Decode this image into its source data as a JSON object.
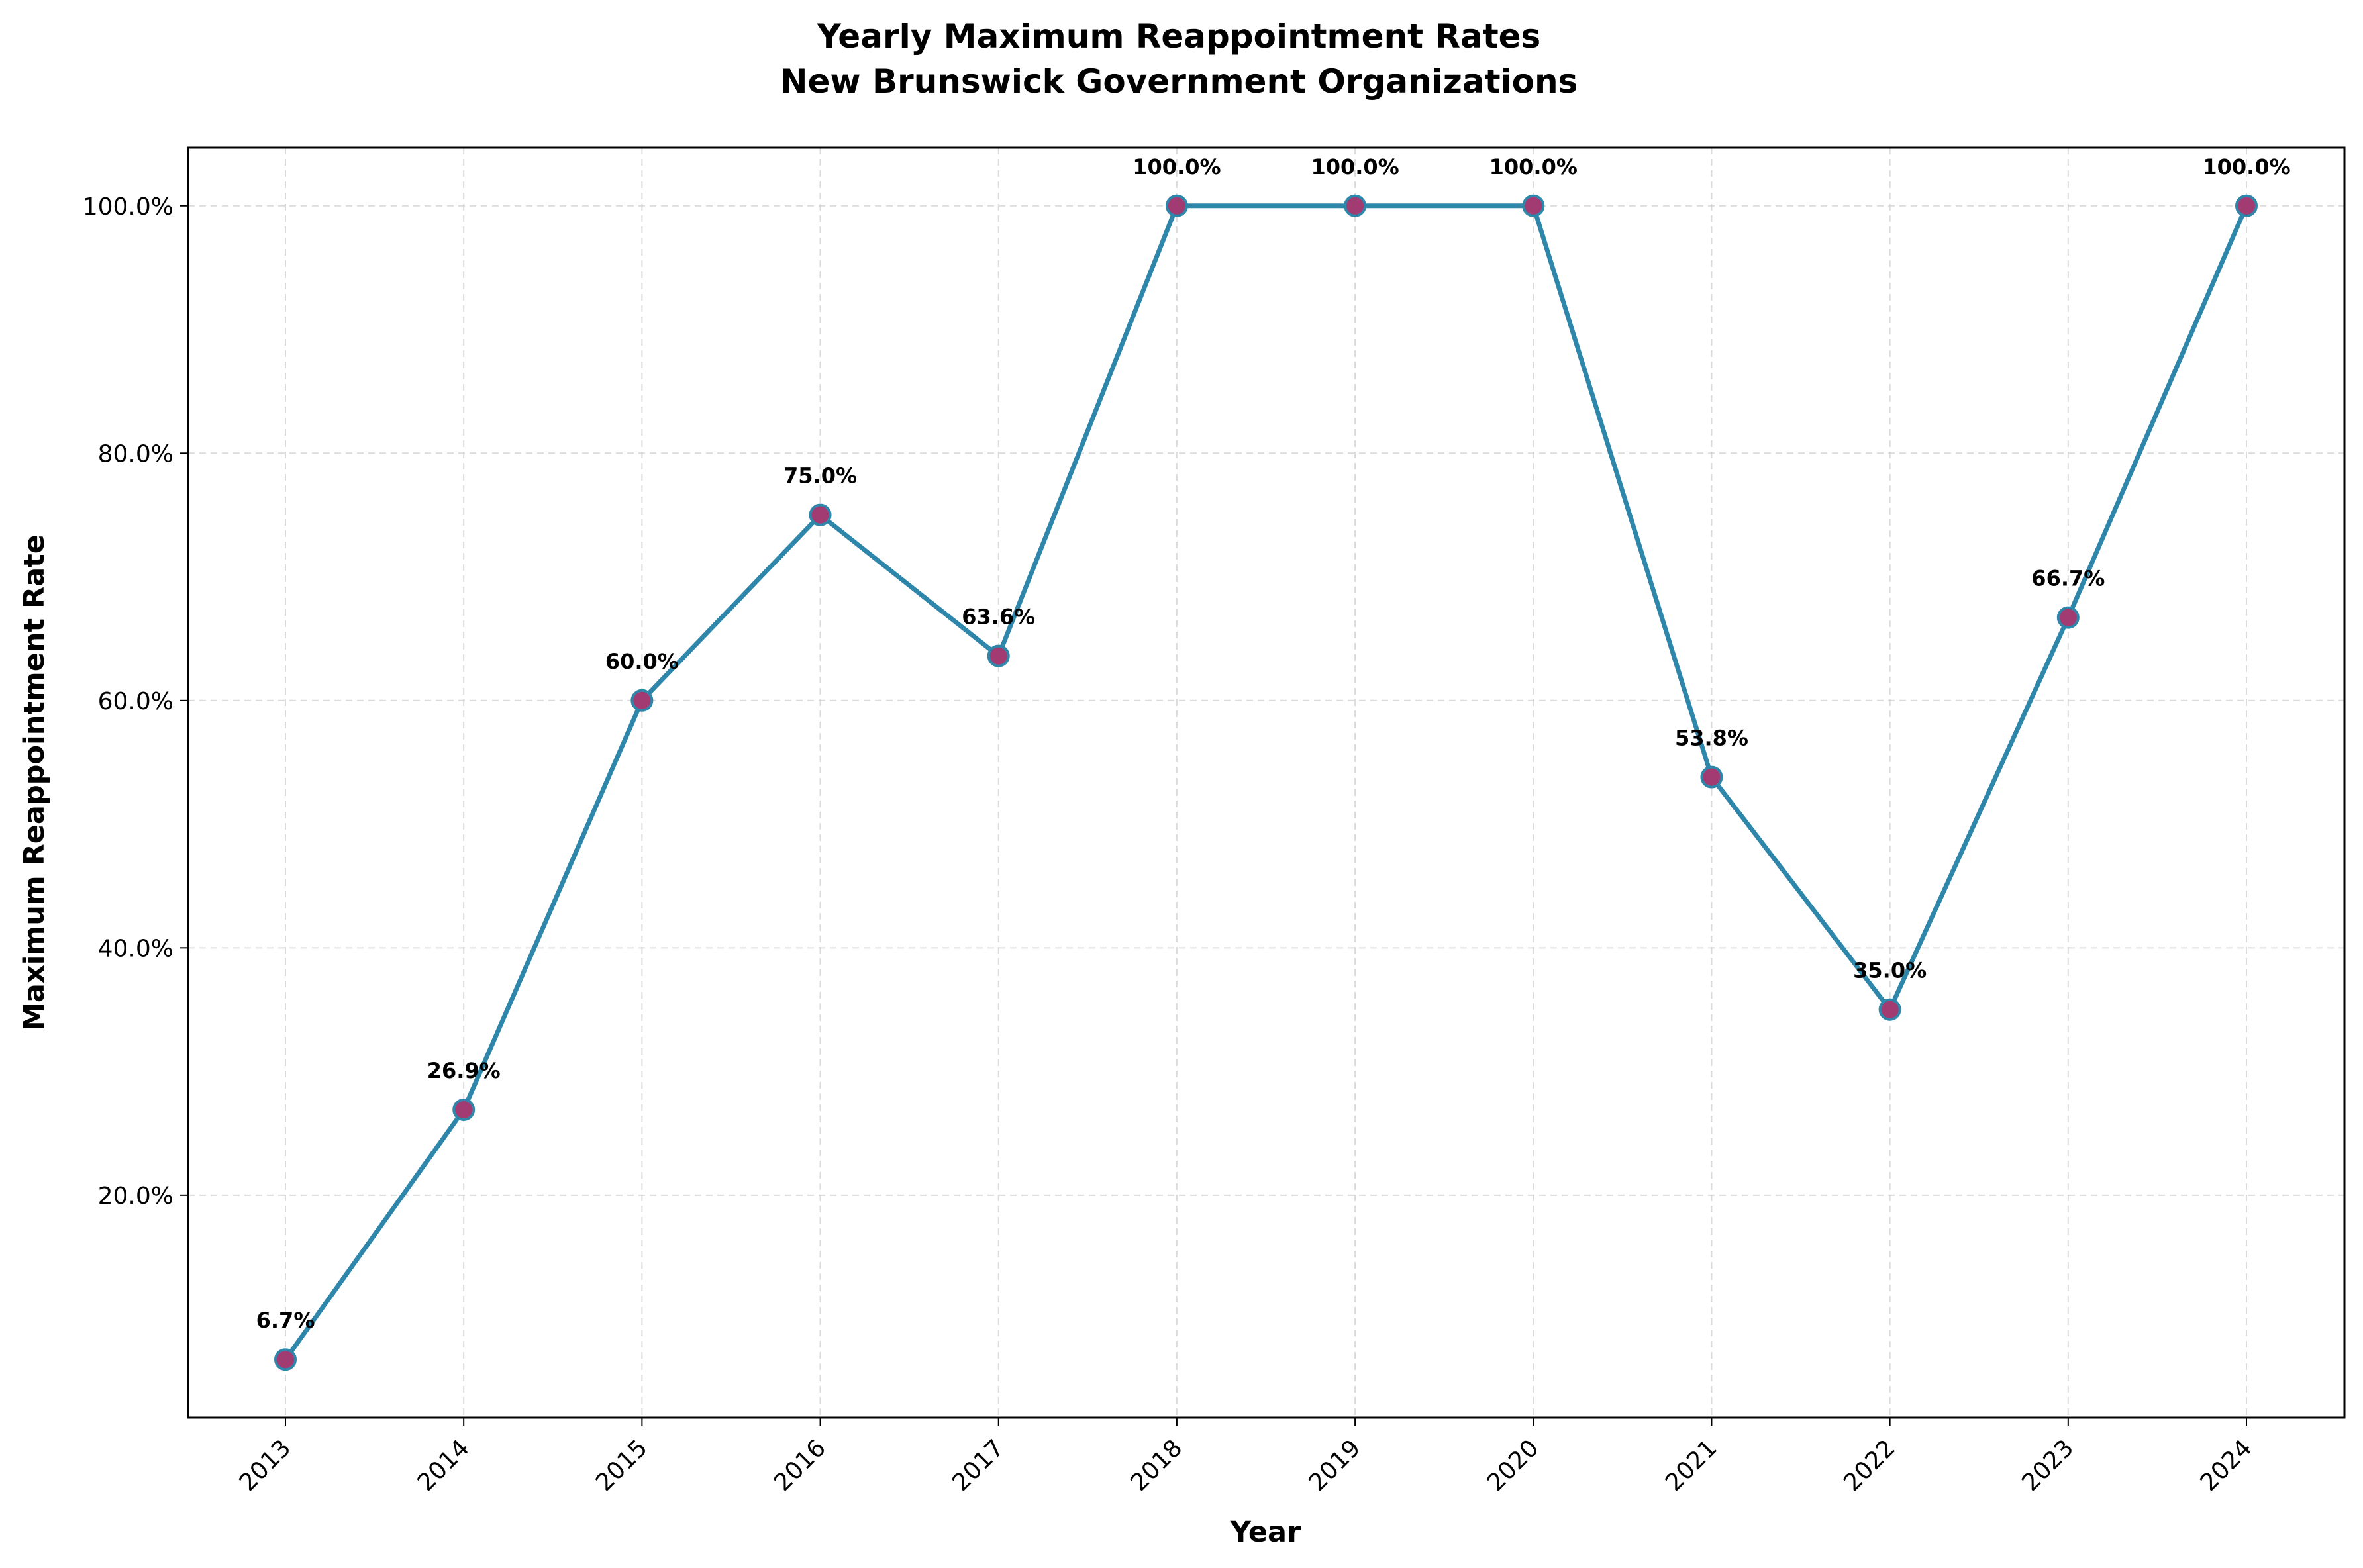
{
  "chart_data": {
    "type": "line",
    "title": "Yearly Maximum Reappointment Rates",
    "subtitle": "New Brunswick Government Organizations",
    "xlabel": "Year",
    "ylabel": "Maximum Reappointment Rate",
    "x": [
      "2013",
      "2014",
      "2015",
      "2016",
      "2017",
      "2018",
      "2019",
      "2020",
      "2021",
      "2022",
      "2023",
      "2024"
    ],
    "series": [
      {
        "values": [
          6.7,
          26.9,
          60.0,
          75.0,
          63.6,
          100.0,
          100.0,
          100.0,
          53.8,
          35.0,
          66.7,
          100.0
        ],
        "labels": [
          "6.7%",
          "26.9%",
          "60.0%",
          "75.0%",
          "63.6%",
          "100.0%",
          "100.0%",
          "100.0%",
          "53.8%",
          "35.0%",
          "66.7%",
          "100.0%"
        ],
        "line_color": "#2e86ab",
        "marker_color": "#a23b72"
      }
    ],
    "ylim": [
      2.0,
      104.7
    ],
    "yticks": [
      20,
      40,
      60,
      80,
      100
    ],
    "ytick_labels": [
      "20.0%",
      "40.0%",
      "60.0%",
      "80.0%",
      "100.0%"
    ],
    "grid": true,
    "x_tick_rotation_deg": 45
  }
}
